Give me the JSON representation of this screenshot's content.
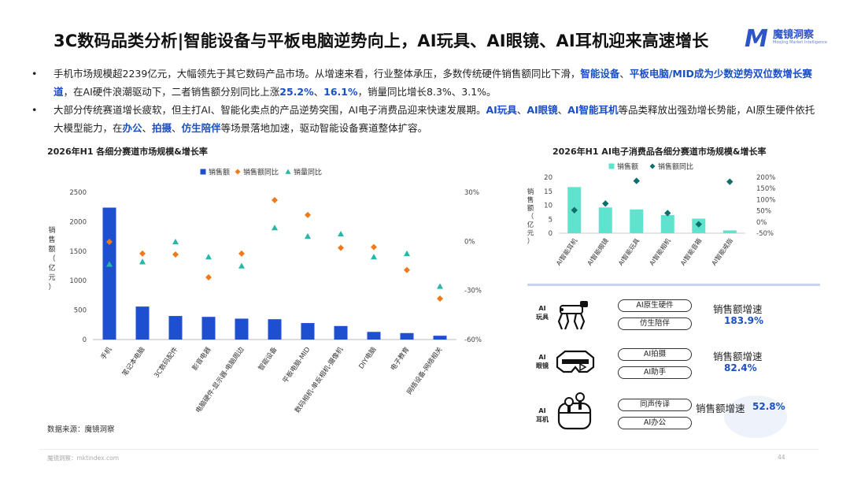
{
  "header": {
    "title": "3C数码品类分析|智能设备与平板电脑逆势向上，AI玩具、AI眼镜、AI耳机迎来高速增长",
    "logo_mark": "M",
    "logo_cn": "魔镜洞察",
    "logo_en": "Moojing Market Intelligence"
  },
  "bullets": [
    {
      "dot": "•",
      "parts": [
        {
          "t": "手机市场规模超2239亿元，大幅领先于其它数码产品市场。从增速来看，行业整体承压，多数传统硬件销售额同比下滑，",
          "hl": false
        },
        {
          "t": "智能设备",
          "hl": true
        },
        {
          "t": "、",
          "hl": false
        },
        {
          "t": "平板电脑/MID成为少数逆势双位数增长赛道",
          "hl": true
        },
        {
          "t": "，在AI硬件浪潮驱动下，二者销售额分别同比上涨",
          "hl": false
        },
        {
          "t": "25.2%",
          "hl": true
        },
        {
          "t": "、",
          "hl": false
        },
        {
          "t": "16.1%",
          "hl": true
        },
        {
          "t": "，销量同比增长8.3%、3.1%。",
          "hl": false
        }
      ]
    },
    {
      "dot": "•",
      "parts": [
        {
          "t": "大部分传统赛道增长疲软，但主打AI、智能化卖点的产品逆势突围，AI电子消费品迎来快速发展期。",
          "hl": false
        },
        {
          "t": "AI玩具",
          "hl": true
        },
        {
          "t": "、",
          "hl": false
        },
        {
          "t": "AI眼镜",
          "hl": true
        },
        {
          "t": "、",
          "hl": false
        },
        {
          "t": "AI智能耳机",
          "hl": true
        },
        {
          "t": "等品类释放出强劲增长势能，AI原生硬件依托大模型能力，在",
          "hl": false
        },
        {
          "t": "办公",
          "hl": true
        },
        {
          "t": "、",
          "hl": false
        },
        {
          "t": "拍摄",
          "hl": true
        },
        {
          "t": "、",
          "hl": false
        },
        {
          "t": "仿生陪伴",
          "hl": true
        },
        {
          "t": "等场景落地加速，驱动智能设备赛道整体扩容。",
          "hl": false
        }
      ]
    }
  ],
  "chart_data": [
    {
      "type": "bar",
      "title": "2026年H1 各细分赛道市场规模&增长率",
      "ylabel": "销售额（亿元）",
      "categories": [
        "手机",
        "笔记本电脑",
        "3C数码配件",
        "影音电器",
        "电脑硬件-显示器-电脑周边",
        "智能设备",
        "平板电脑-MID",
        "数码相机-单反相机-摄像机",
        "DIY电脑",
        "电子教育",
        "网络设备-网络相关"
      ],
      "series": [
        {
          "name": "销售额",
          "axis": "left",
          "values": [
            2239,
            560,
            400,
            385,
            355,
            345,
            280,
            230,
            130,
            110,
            65
          ],
          "color": "#1f4fd1"
        },
        {
          "name": "销售额同比",
          "axis": "right",
          "values": [
            -0.3,
            -7.5,
            -8.0,
            -22.0,
            -7.5,
            25.2,
            16.1,
            -4.0,
            -3.5,
            -17.5,
            -35.0
          ],
          "color": "#f07a1a"
        },
        {
          "name": "销量同比",
          "axis": "right",
          "values": [
            -14.0,
            -12.5,
            -0.3,
            -9.5,
            -15.0,
            8.3,
            3.1,
            4.5,
            -9.5,
            -7.5,
            -27.5
          ],
          "color": "#25b7a8"
        }
      ],
      "yticks_left": [
        "0",
        "500",
        "1000",
        "1500",
        "2000",
        "2500"
      ],
      "yticks_right": [
        "-60%",
        "-30%",
        "0%",
        "30%"
      ],
      "ylim_left": [
        0,
        2500
      ],
      "ylim_right": [
        -60,
        30
      ],
      "legend": "top-center"
    },
    {
      "type": "bar",
      "title": "2026年H1 AI电子消费品各细分赛道市场规模&增长率",
      "ylabel": "销售额（亿元）",
      "categories": [
        "AI智能耳机",
        "AI智能眼镜",
        "AI智能玩具",
        "AI智能相机",
        "AI智能音箱",
        "AI智能戒指"
      ],
      "series": [
        {
          "name": "销售额",
          "axis": "left",
          "values": [
            16.5,
            9.2,
            8.5,
            6.5,
            5.2,
            1.0
          ],
          "color": "#5fe3cf"
        },
        {
          "name": "销售额同比",
          "axis": "right",
          "values": [
            52.8,
            82.4,
            183.9,
            40.0,
            -10.0,
            180.0
          ],
          "color": "#0d6e6a"
        }
      ],
      "yticks_left": [
        "0",
        "5",
        "10",
        "15",
        "20"
      ],
      "yticks_right": [
        "-50%",
        "0%",
        "50%",
        "100%",
        "150%",
        "200%"
      ],
      "ylim_left": [
        0,
        20
      ],
      "ylim_right": [
        -50,
        200
      ],
      "legend": "top-center"
    }
  ],
  "ai_products": [
    {
      "label": "AI\n玩具",
      "pills": [
        "AI原生硬件",
        "仿生陪伴"
      ],
      "growth_label": "销售额增速",
      "growth_value": "183.9%",
      "icon": "robot-dog-icon"
    },
    {
      "label": "AI\n眼镜",
      "pills": [
        "AI拍摄",
        "AI助手"
      ],
      "growth_label": "销售额增速",
      "growth_value": "82.4%",
      "icon": "smart-glasses-icon"
    },
    {
      "label": "AI\n耳机",
      "pills": [
        "同声传译",
        "AI办公"
      ],
      "growth_label": "销售额增速",
      "growth_value": "52.8%",
      "icon": "earbuds-icon"
    }
  ],
  "source": "数据来源：魔镜洞察",
  "footer": "魔镜洞察：mktindex.com",
  "page_number": "44",
  "colors": {
    "accent": "#1a4fc4",
    "bar_blue": "#1f4fd1",
    "orange": "#f07a1a",
    "teal": "#25b7a8",
    "mint": "#5fe3cf",
    "dark_teal": "#0d6e6a"
  }
}
